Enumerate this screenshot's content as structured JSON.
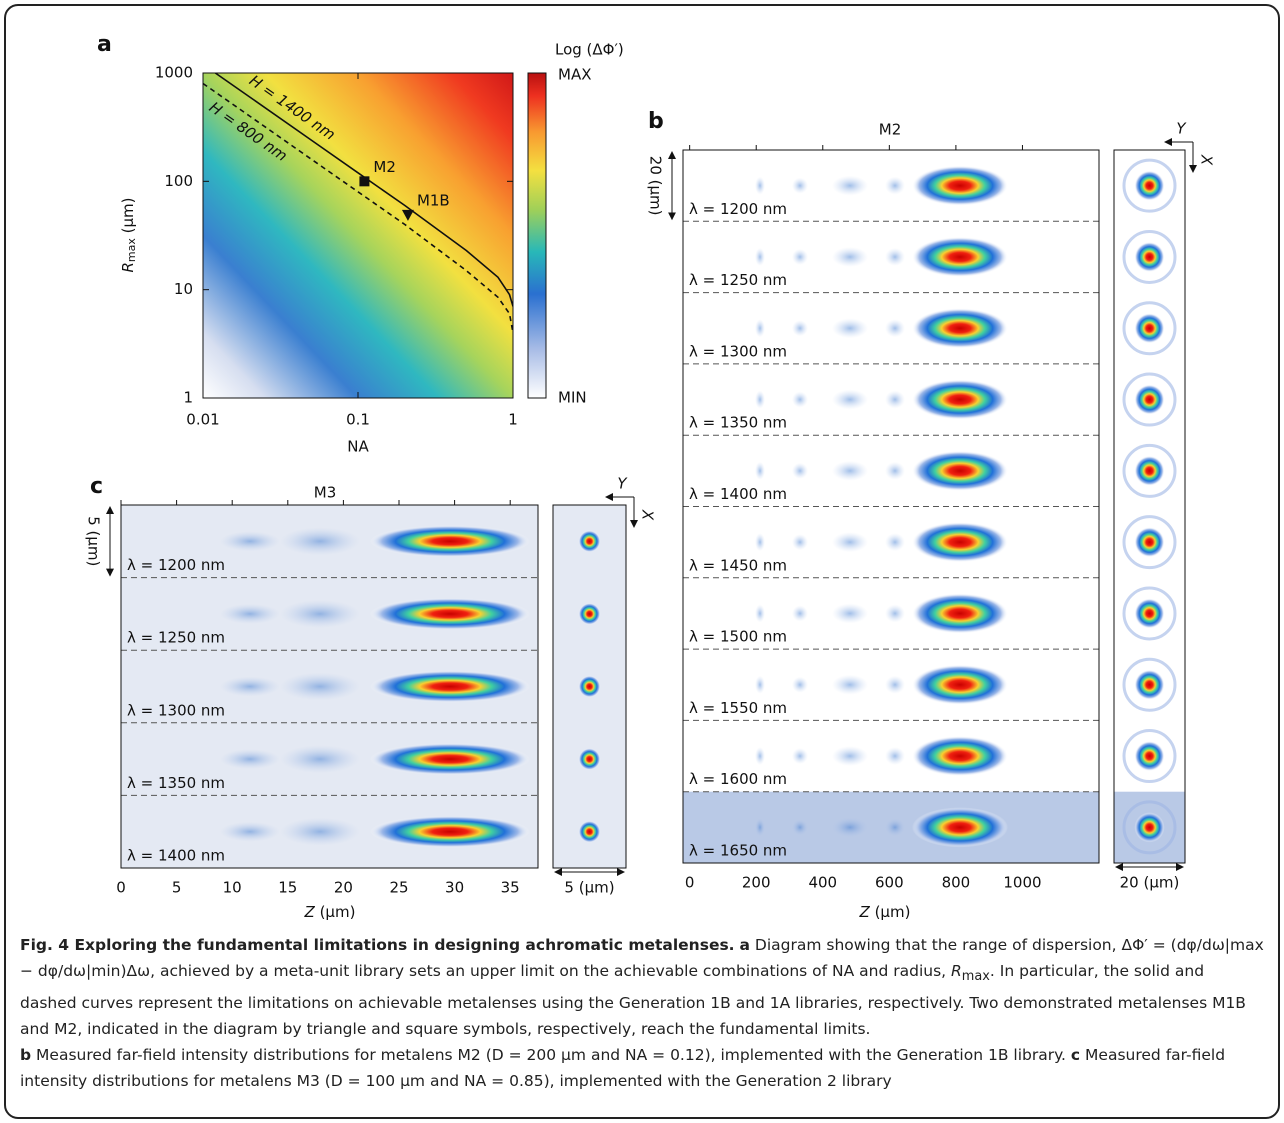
{
  "panel_a": {
    "label": "a",
    "colorbar_title": "Log (ΔΦ′)",
    "colorbar_max": "MAX",
    "colorbar_min": "MIN",
    "x_label": "NA",
    "y_label": "R",
    "y_label_sub": "max",
    "y_label_unit": " (µm)",
    "xscale": "log",
    "yscale": "log",
    "xlim": [
      0.01,
      1
    ],
    "ylim": [
      1,
      1000
    ],
    "xticks": [
      0.01,
      0.1,
      1
    ],
    "yticks": [
      1,
      10,
      100,
      1000
    ],
    "series": [
      {
        "name": "H = 1400 nm",
        "dash": false,
        "x": [
          0.012,
          0.02,
          0.05,
          0.1,
          0.2,
          0.5,
          0.8,
          0.95,
          1
        ],
        "values": [
          1000,
          600,
          240,
          120,
          60,
          23,
          13,
          9,
          7
        ]
      },
      {
        "name": "H = 800 nm",
        "dash": true,
        "x": [
          0.01,
          0.02,
          0.05,
          0.1,
          0.2,
          0.5,
          0.8,
          0.95,
          1
        ],
        "values": [
          800,
          400,
          160,
          80,
          40,
          15,
          8.5,
          6,
          4
        ]
      }
    ],
    "points": [
      {
        "name": "M2",
        "marker": "square",
        "x": 0.11,
        "y": 100
      },
      {
        "name": "M1B",
        "marker": "triangle",
        "x": 0.21,
        "y": 49
      }
    ]
  },
  "panel_b": {
    "label": "b",
    "title": "M2",
    "x_label_var": "Z",
    "x_label_unit": " (µm)",
    "xlim": [
      -20,
      1230
    ],
    "xticks": [
      0,
      200,
      400,
      600,
      800,
      1000
    ],
    "rows": [
      "λ = 1200 nm",
      "λ = 1250 nm",
      "λ = 1300 nm",
      "λ = 1350 nm",
      "λ = 1400 nm",
      "λ = 1450 nm",
      "λ = 1500 nm",
      "λ = 1550 nm",
      "λ = 1600 nm",
      "λ = 1650 nm"
    ],
    "scale_bar_left": "20 (µm)",
    "scale_bar_bottom": "20 (µm)",
    "axis_y": "Y",
    "axis_x": "X"
  },
  "panel_c": {
    "label": "c",
    "title": "M3",
    "x_label_var": "Z",
    "x_label_unit": " (µm)",
    "xlim": [
      0,
      37.5
    ],
    "xticks": [
      0,
      5,
      10,
      15,
      20,
      25,
      30,
      35
    ],
    "rows": [
      "λ = 1200 nm",
      "λ = 1250 nm",
      "λ = 1300 nm",
      "λ = 1350 nm",
      "λ = 1400 nm"
    ],
    "scale_bar_left": "5 (µm)",
    "scale_bar_bottom": "5 (µm)",
    "axis_y": "Y",
    "axis_x": "X"
  },
  "caption": {
    "title": "Fig. 4 Exploring the fundamental limitations in designing achromatic metalenses.",
    "a_label": "a",
    "a_text_1": " Diagram showing that the range of dispersion, ΔΦ′ = (dφ/dω|max − dφ/dω|min)Δω, achieved by a meta-unit library sets an upper limit on the achievable combinations of NA and radius, ",
    "a_text_var": "R",
    "a_text_sub": "max",
    "a_text_2": ". In particular, the solid and dashed curves represent the limitations on achievable metalenses using the Generation 1B and 1A libraries, respectively. Two demonstrated metalenses M1B and M2, indicated in the diagram by triangle and square symbols, respectively, reach the fundamental limits.",
    "b_label": "b",
    "b_text": " Measured far-field intensity distributions for metalens M2 (D = 200 µm and NA = 0.12), implemented with the Generation 1B library.",
    "c_label": "c",
    "c_text": " Measured far-field intensity distributions for metalens M3 (D = 100 µm and NA = 0.85), implemented with the Generation 2 library"
  }
}
